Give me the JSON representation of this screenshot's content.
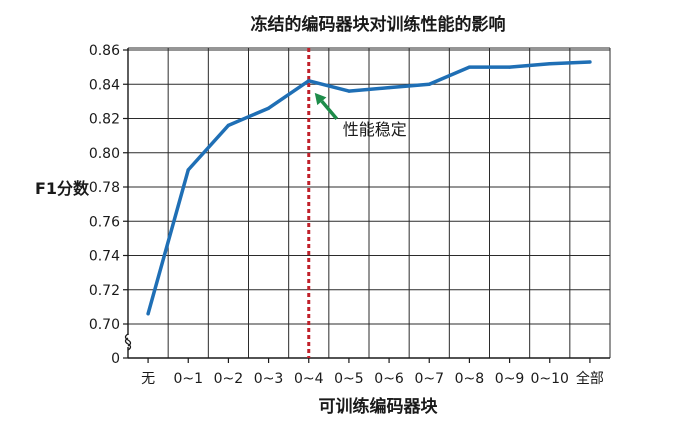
{
  "chart_data": {
    "type": "line",
    "title": "冻结的编码器块对训练性能的影响",
    "xlabel": "可训练编码器块",
    "ylabel": "F1分数",
    "categories": [
      "无",
      "0~1",
      "0~2",
      "0~3",
      "0~4",
      "0~5",
      "0~6",
      "0~7",
      "0~8",
      "0~9",
      "0~10",
      "全部"
    ],
    "series": [
      {
        "values": [
          0.706,
          0.79,
          0.816,
          0.826,
          0.842,
          0.836,
          0.838,
          0.84,
          0.85,
          0.85,
          0.852,
          0.853
        ]
      }
    ],
    "ylim": [
      0.7,
      0.86
    ],
    "y_ticks": [
      "0",
      "0.70",
      "0.72",
      "0.74",
      "0.76",
      "0.78",
      "0.80",
      "0.82",
      "0.84",
      "0.86"
    ],
    "y_axis_break": true,
    "grid": true,
    "line_color": "#1f6fb5",
    "marker_line": {
      "category": "0~4",
      "color": "#c0202a",
      "style": "dashed"
    },
    "annotation": {
      "text": "性能稳定",
      "target_category": "0~4",
      "arrow_color": "#1e8c4a"
    }
  }
}
